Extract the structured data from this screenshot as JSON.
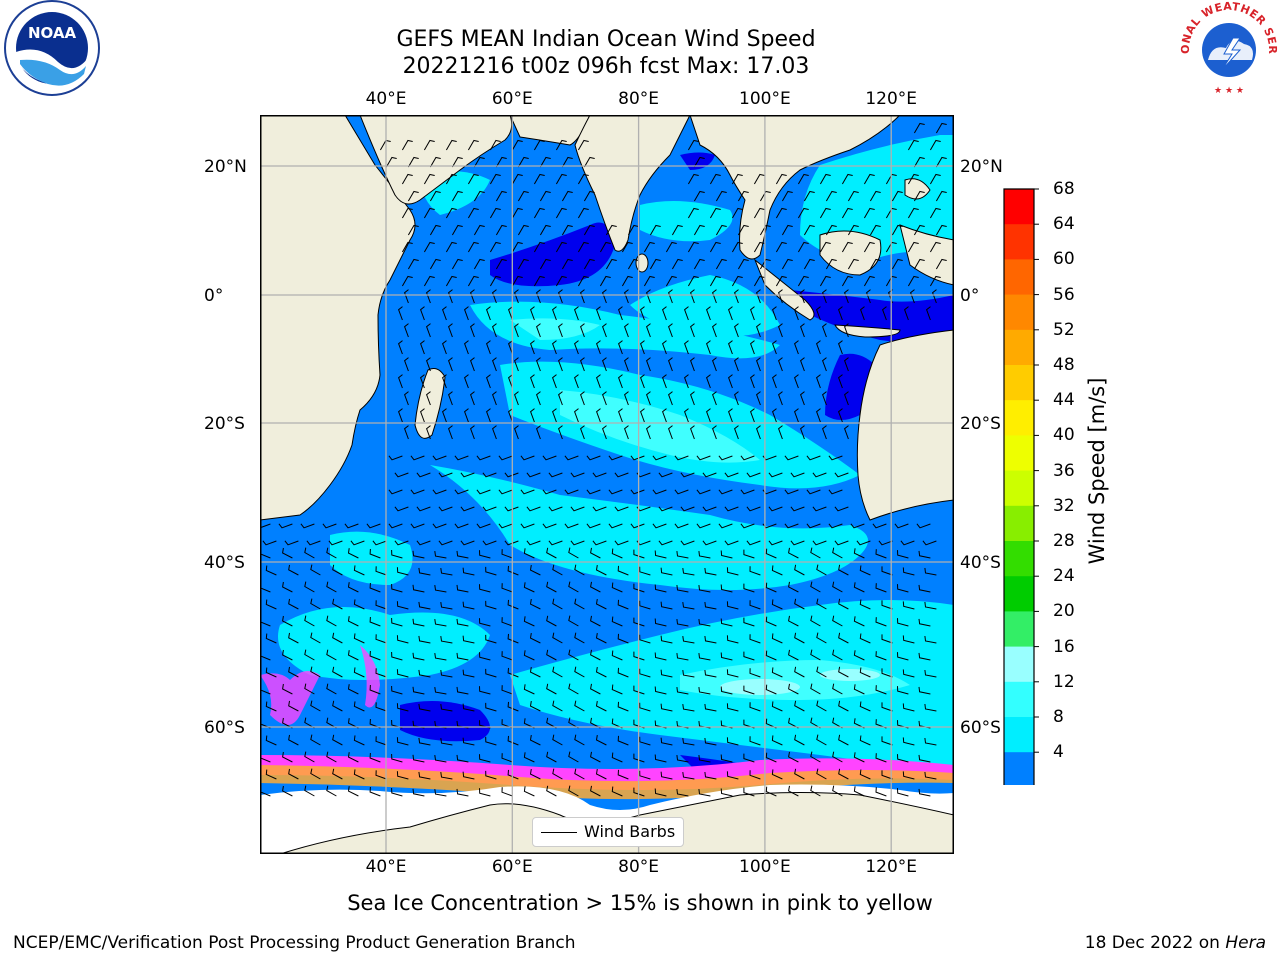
{
  "title_line1": "GEFS MEAN Indian Ocean Wind Speed",
  "title_line2": "20221216 t00z 096h fcst   Max: 17.03",
  "caption": "Sea Ice Concentration > 15% is shown in pink to yellow",
  "footer_left": "NCEP/EMC/Verification Post Processing Product Generation Branch",
  "footer_right_date": "18 Dec 2022 on ",
  "footer_right_host": "Hera",
  "legend_label": "Wind Barbs",
  "colorbar": {
    "label": "Wind Speed [m/s]",
    "ticks": [
      "68",
      "64",
      "60",
      "56",
      "52",
      "48",
      "44",
      "40",
      "36",
      "32",
      "28",
      "24",
      "20",
      "16",
      "12",
      "8",
      "4"
    ],
    "colors": [
      "#ff0000",
      "#ff3300",
      "#ff6600",
      "#ff8800",
      "#ffaa00",
      "#ffcc00",
      "#ffee00",
      "#eeff00",
      "#ccff00",
      "#99ee00",
      "#55dd00",
      "#00cc00",
      "#33ee66",
      "#66ff99",
      "#99ffff",
      "#33ffff",
      "#00eeff",
      "#0088ff"
    ],
    "extend_color": "#0000ee"
  },
  "map": {
    "lon_labels": [
      "40°E",
      "60°E",
      "80°E",
      "100°E",
      "120°E"
    ],
    "lat_labels_left": [
      "20°N",
      "0°",
      "20°S",
      "40°S",
      "60°S"
    ],
    "lat_labels_right": [
      "20°N",
      "0°",
      "20°S",
      "40°S",
      "60°S"
    ],
    "lon_range": [
      20,
      130
    ],
    "lat_range": [
      -72,
      28
    ],
    "colors": {
      "land": "#f0eedc",
      "ice_shelf": "#ffffff",
      "wind_4_8": "#0080ff",
      "wind_8_12": "#00eeff",
      "wind_12_16": "#40ffff",
      "wind_lt4": "#0000ee",
      "sea_ice_pink": "#ff44ff",
      "sea_ice_orange": "#ffaa33",
      "grid": "#b0b0b0"
    }
  },
  "logos": {
    "left": {
      "name": "noaa-logo",
      "text": "NOAA"
    },
    "right": {
      "name": "nws-logo",
      "text": "NATIONAL WEATHER SERVICE"
    }
  }
}
